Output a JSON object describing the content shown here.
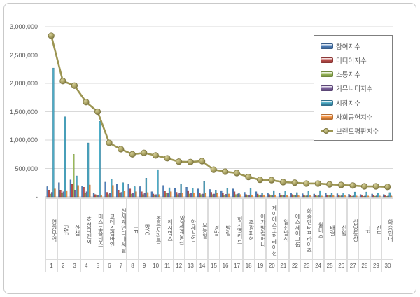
{
  "window": {
    "background": "#ffffff",
    "frame_border": "#c9c9c9"
  },
  "chart_data": {
    "type": "bar+line",
    "title": "",
    "categories": [
      "영원무역",
      "F&F",
      "한섬",
      "효성티앤씨",
      "미스토홀딩스",
      "코데즈컴바인",
      "신세계인터내셔날",
      "LF",
      "BYC",
      "좋은사람들",
      "젝시믹스",
      "SG세계물산",
      "한세실업",
      "모동일",
      "경방",
      "방림",
      "형지엘리트",
      "조광피혁",
      "아가방컴퍼니",
      "제이에스코퍼레이션",
      "일신방직",
      "에스제이그룹",
      "화승엔터프라이즈",
      "윌비스",
      "배럴",
      "신원",
      "삼양통상",
      "TP",
      "진도",
      "화승인더"
    ],
    "ranks": [
      "1",
      "2",
      "3",
      "4",
      "5",
      "6",
      "7",
      "8",
      "9",
      "10",
      "11",
      "12",
      "13",
      "14",
      "15",
      "16",
      "17",
      "18",
      "19",
      "20",
      "21",
      "22",
      "23",
      "24",
      "25",
      "26",
      "27",
      "28",
      "29",
      "30"
    ],
    "bar_series": [
      {
        "name": "참여지수",
        "color": "#4F81BD",
        "border": "#385D8A",
        "values": [
          180000,
          250000,
          300000,
          190000,
          60000,
          260000,
          230000,
          220000,
          180000,
          90000,
          200000,
          150000,
          170000,
          140000,
          130000,
          110000,
          140000,
          80000,
          90000,
          70000,
          60000,
          70000,
          55000,
          50000,
          60000,
          55000,
          45000,
          40000,
          50000,
          40000
        ]
      },
      {
        "name": "미디어지수",
        "color": "#C0504D",
        "border": "#8C3836",
        "values": [
          120000,
          120000,
          220000,
          170000,
          40000,
          80000,
          120000,
          140000,
          90000,
          50000,
          100000,
          80000,
          110000,
          70000,
          80000,
          60000,
          90000,
          40000,
          50000,
          40000,
          35000,
          40000,
          30000,
          25000,
          35000,
          30000,
          25000,
          20000,
          25000,
          20000
        ]
      },
      {
        "name": "소통지수",
        "color": "#9BBB59",
        "border": "#71893F",
        "values": [
          50000,
          60000,
          750000,
          60000,
          20000,
          40000,
          60000,
          50000,
          40000,
          30000,
          60000,
          40000,
          50000,
          40000,
          40000,
          30000,
          40000,
          20000,
          30000,
          20000,
          20000,
          20000,
          15000,
          15000,
          20000,
          15000,
          12000,
          10000,
          12000,
          10000
        ]
      },
      {
        "name": "커뮤니티지수",
        "color": "#8064A2",
        "border": "#5C4776",
        "values": [
          80000,
          90000,
          120000,
          90000,
          30000,
          60000,
          80000,
          70000,
          60000,
          40000,
          70000,
          60000,
          65000,
          50000,
          50000,
          45000,
          50000,
          30000,
          35000,
          30000,
          25000,
          25000,
          20000,
          20000,
          25000,
          20000,
          18000,
          15000,
          18000,
          15000
        ]
      },
      {
        "name": "시장지수",
        "color": "#4BACC6",
        "border": "#31708C",
        "values": [
          2270000,
          1410000,
          370000,
          950000,
          1330000,
          310000,
          250000,
          180000,
          330000,
          480000,
          160000,
          230000,
          150000,
          270000,
          120000,
          150000,
          60000,
          150000,
          60000,
          110000,
          100000,
          75000,
          95000,
          110000,
          60000,
          70000,
          85000,
          85000,
          65000,
          75000
        ]
      },
      {
        "name": "사회공헌지수",
        "color": "#F79646",
        "border": "#B66D31",
        "values": [
          140000,
          110000,
          200000,
          210000,
          20000,
          200000,
          100000,
          90000,
          75000,
          40000,
          90000,
          60000,
          70000,
          60000,
          60000,
          50000,
          40000,
          30000,
          35000,
          25000,
          20000,
          20000,
          20000,
          15000,
          20000,
          20000,
          15000,
          15000,
          15000,
          15000
        ]
      }
    ],
    "line_series": {
      "name": "브랜드평판지수",
      "color": "#9C9552",
      "marker_fill": "#ACA565",
      "marker_highlight": "#D6D09A",
      "marker_border": "#7E7742",
      "values": [
        2840000,
        2040000,
        1960000,
        1670000,
        1500000,
        950000,
        840000,
        750000,
        775000,
        730000,
        680000,
        620000,
        615000,
        630000,
        480000,
        445000,
        420000,
        350000,
        300000,
        295000,
        260000,
        250000,
        235000,
        235000,
        220000,
        210000,
        200000,
        185000,
        185000,
        175000
      ]
    },
    "yticks": [
      {
        "label": "3,000,000",
        "value": 3000000
      },
      {
        "label": "2,500,000",
        "value": 2500000
      },
      {
        "label": "2,000,000",
        "value": 2000000
      },
      {
        "label": "1,500,000",
        "value": 1500000
      },
      {
        "label": "1,000,000",
        "value": 1000000
      },
      {
        "label": "500,000",
        "value": 500000
      },
      {
        "label": "-",
        "value": 0
      }
    ],
    "ylim": [
      0,
      3000000
    ],
    "grid": true,
    "grid_color": "#d9d9d9",
    "axis_color": "#bfbfbf",
    "label_color": "#595959",
    "legend_position": "inside-top-right"
  }
}
